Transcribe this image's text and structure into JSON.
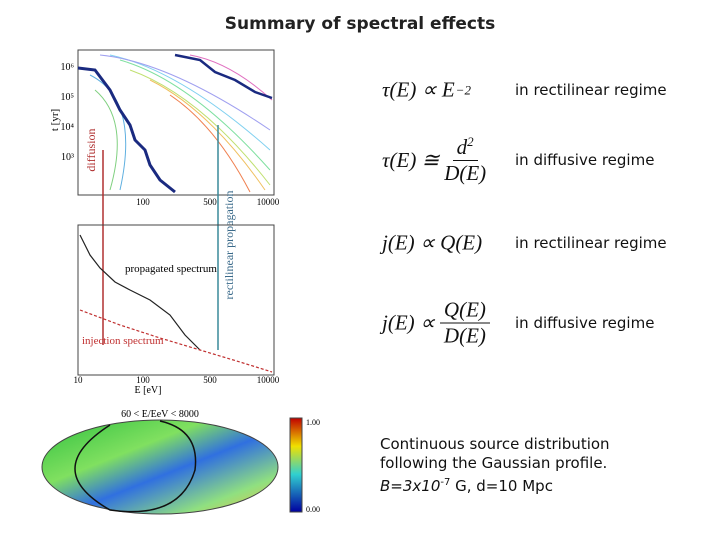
{
  "header": {
    "title": "Summary of spectral effects"
  },
  "plots": {
    "top": {
      "y_label": "t [yr]",
      "yticks": [
        "10⁶",
        "10⁵",
        "10⁴",
        "10³"
      ],
      "xticks": [
        "100",
        "500",
        "10000"
      ],
      "labels": [
        "diffusion",
        "rectilinear propagation"
      ]
    },
    "middle": {
      "x_label": "E [eV]",
      "xticks": [
        "10",
        "100",
        "500",
        "10000"
      ],
      "labels": [
        "propagated spectrum",
        "injection spectrum"
      ]
    },
    "bottom": {
      "title": "60 < E/EeV < 8000",
      "scale": [
        "1.00",
        "0.00"
      ]
    }
  },
  "formulas": [
    {
      "lhs": "τ(E) ∝ E",
      "sup": "−2",
      "regime": "in rectilinear regime"
    },
    {
      "lhs": "τ(E) ≅",
      "num": "d",
      "num_sup": "2",
      "den": "D(E)",
      "regime": "in diffusive regime"
    },
    {
      "lhs": "j(E) ∝ Q(E)",
      "regime": "in rectilinear regime"
    },
    {
      "lhs": "j(E) ∝",
      "num": "Q(E)",
      "den": "D(E)",
      "regime": "in diffusive regime"
    }
  ],
  "caption": {
    "line1": "Continuous source distribution",
    "line2": "following the Gaussian profile.",
    "b": "B=3x10",
    "b_exp": "-7",
    "rest": " G, d=10 Mpc"
  }
}
